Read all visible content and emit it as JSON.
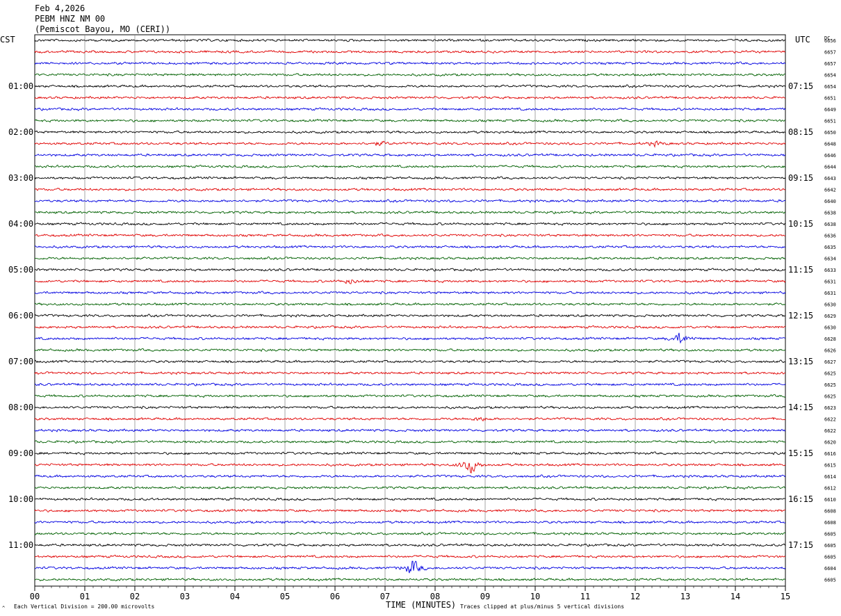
{
  "header": {
    "date": "Feb 4,2026",
    "station": "PEBM HNZ NM 00",
    "location": "(Pemiscot Bayou, MO (CERI))"
  },
  "left_timezone": "CST",
  "right_timezone": "UTC",
  "dc_label": "DC",
  "footer": {
    "scale_note": "Each Vertical Division =  200.00 microvolts",
    "xlabel": "TIME (MINUTES)",
    "clip_note": "Traces clipped at plus/minus 5 vertical divisions"
  },
  "chart_data": {
    "type": "line",
    "xlabel": "TIME (MINUTES)",
    "xlim": [
      0,
      15
    ],
    "x_ticks": [
      "00",
      "01",
      "02",
      "03",
      "04",
      "05",
      "06",
      "07",
      "08",
      "09",
      "10",
      "11",
      "12",
      "13",
      "14",
      "15"
    ],
    "left_time_labels": [
      "01:00",
      "02:00",
      "03:00",
      "04:00",
      "05:00",
      "06:00",
      "07:00",
      "08:00",
      "09:00",
      "10:00",
      "11:00"
    ],
    "right_time_labels": [
      "07:15",
      "08:15",
      "09:15",
      "10:15",
      "11:15",
      "12:15",
      "13:15",
      "14:15",
      "15:15",
      "16:15",
      "17:15"
    ],
    "trace_colors": [
      "#000000",
      "#e00000",
      "#0000e0",
      "#006000"
    ],
    "trace_offsets_dc": [
      "6656",
      "6657",
      "6657",
      "6654",
      "6654",
      "6651",
      "6649",
      "6651",
      "6650",
      "6648",
      "6646",
      "6644",
      "6643",
      "6642",
      "6640",
      "6638",
      "6638",
      "6636",
      "6635",
      "6634",
      "6633",
      "6631",
      "6631",
      "6630",
      "6629",
      "6630",
      "6628",
      "6626",
      "6627",
      "6625",
      "6625",
      "6625",
      "6623",
      "6622",
      "6622",
      "6620",
      "6616",
      "6615",
      "6614",
      "6612",
      "6610",
      "6608",
      "6608",
      "6605",
      "6605",
      "6605",
      "6604",
      "6605"
    ],
    "events": [
      {
        "trace": 9,
        "minute": 6.9,
        "size": 1.2
      },
      {
        "trace": 9,
        "minute": 12.4,
        "size": 1.3
      },
      {
        "trace": 21,
        "minute": 6.3,
        "size": 1.5
      },
      {
        "trace": 26,
        "minute": 12.9,
        "size": 3.5
      },
      {
        "trace": 33,
        "minute": 8.9,
        "size": 1.2
      },
      {
        "trace": 37,
        "minute": 8.7,
        "size": 5.5
      },
      {
        "trace": 46,
        "minute": 7.55,
        "size": 5
      }
    ]
  }
}
